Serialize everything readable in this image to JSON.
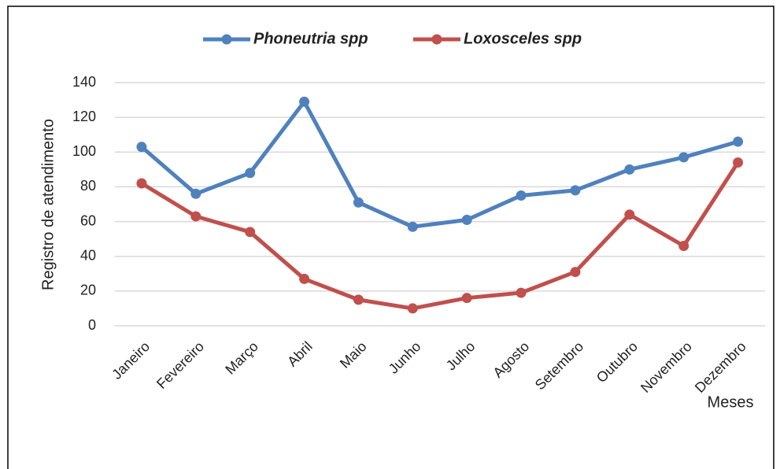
{
  "chart_data": {
    "type": "line",
    "y_label": "Registro de atendimento",
    "x_label": "Meses",
    "categories": [
      "Janeiro",
      "Fevereiro",
      "Março",
      "Abril",
      "Maio",
      "Junho",
      "Julho",
      "Agosto",
      "Setembro",
      "Outubro",
      "Novembro",
      "Dezembro"
    ],
    "series": [
      {
        "name": "Phoneutria spp",
        "color": "#4f81bd",
        "values": [
          103,
          76,
          88,
          129,
          71,
          57,
          61,
          75,
          78,
          90,
          97,
          106
        ]
      },
      {
        "name": "Loxosceles spp",
        "color": "#c0504d",
        "values": [
          82,
          63,
          54,
          27,
          15,
          10,
          16,
          19,
          31,
          64,
          46,
          94
        ]
      }
    ],
    "ylim": [
      0,
      140
    ],
    "yticks": [
      0,
      20,
      40,
      60,
      80,
      100,
      120,
      140
    ],
    "grid": true,
    "legend": "top"
  }
}
